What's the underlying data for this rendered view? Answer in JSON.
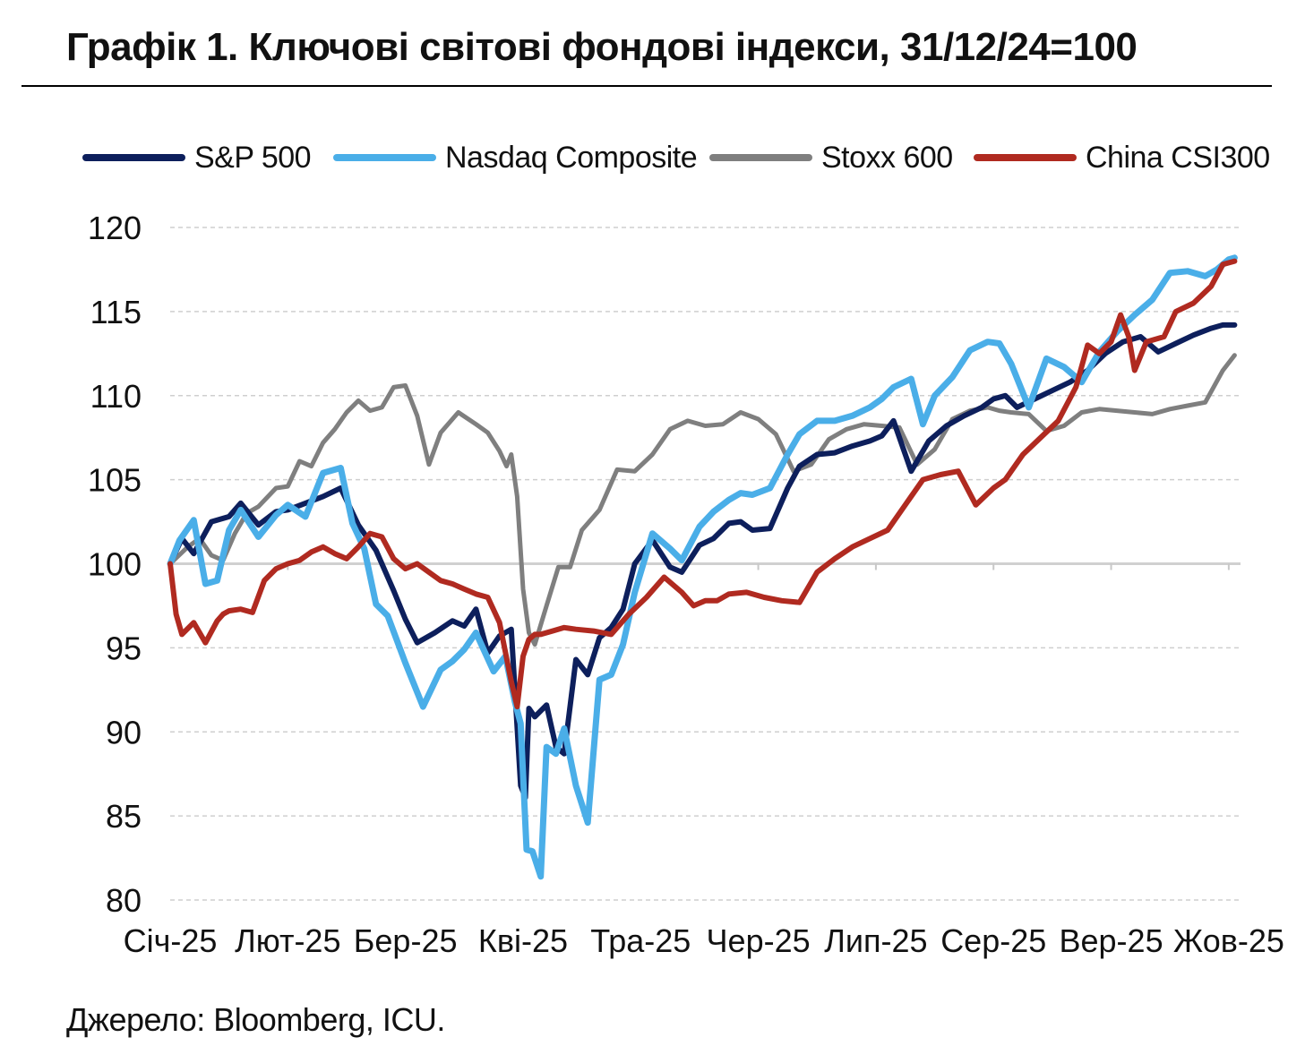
{
  "title": "Графік 1. Ключові світові фондові індекси, 31/12/24=100",
  "source": "Джерело: Bloomberg, ICU.",
  "chart_data": {
    "type": "line",
    "title": "Графік 1. Ключові світові фондові індекси, 31/12/24=100",
    "xlabel": "",
    "ylabel": "",
    "ylim": [
      80,
      120
    ],
    "yticks": [
      80,
      85,
      90,
      95,
      100,
      105,
      110,
      115,
      120
    ],
    "grid": "horizontal dashed",
    "legend_position": "top",
    "x_tick_labels": [
      "Січ-25",
      "Лют-25",
      "Бер-25",
      "Кві-25",
      "Тра-25",
      "Чер-25",
      "Лип-25",
      "Сер-25",
      "Вер-25",
      "Жов-25"
    ],
    "x_tick_positions": [
      0,
      1,
      2,
      3,
      4,
      5,
      6,
      7,
      8,
      9
    ],
    "x_range": [
      0,
      9.1
    ],
    "series": [
      {
        "name": "S&P 500",
        "color": "#0d1f5c",
        "x": [
          0,
          0.1,
          0.2,
          0.35,
          0.5,
          0.6,
          0.75,
          0.9,
          1.0,
          1.15,
          1.3,
          1.45,
          1.6,
          1.75,
          1.9,
          2.0,
          2.1,
          2.25,
          2.4,
          2.5,
          2.6,
          2.7,
          2.8,
          2.9,
          2.98,
          3.02,
          3.05,
          3.1,
          3.2,
          3.28,
          3.35,
          3.45,
          3.55,
          3.65,
          3.75,
          3.85,
          3.95,
          4.1,
          4.25,
          4.35,
          4.5,
          4.62,
          4.75,
          4.85,
          4.95,
          5.1,
          5.25,
          5.35,
          5.5,
          5.65,
          5.8,
          5.95,
          6.05,
          6.15,
          6.3,
          6.45,
          6.6,
          6.75,
          6.9,
          7.0,
          7.1,
          7.2,
          7.35,
          7.5,
          7.65,
          7.8,
          7.95,
          8.1,
          8.25,
          8.4,
          8.55,
          8.7,
          8.85,
          8.95,
          9.05
        ],
        "values": [
          100,
          101.5,
          100.6,
          102.5,
          102.8,
          103.6,
          102.3,
          103.1,
          103.2,
          103.6,
          104.0,
          104.5,
          102.3,
          100.8,
          98.4,
          96.7,
          95.3,
          95.9,
          96.6,
          96.3,
          97.3,
          94.7,
          95.7,
          96.1,
          86.8,
          86.1,
          91.4,
          90.9,
          91.6,
          89.1,
          88.7,
          94.3,
          93.4,
          95.6,
          96.2,
          97.3,
          100.0,
          101.4,
          99.8,
          99.5,
          101.1,
          101.5,
          102.4,
          102.5,
          102.0,
          102.1,
          104.5,
          105.8,
          106.5,
          106.6,
          107.0,
          107.3,
          107.6,
          108.5,
          105.5,
          107.3,
          108.2,
          108.8,
          109.3,
          109.8,
          110.0,
          109.3,
          109.8,
          110.3,
          110.8,
          111.5,
          112.5,
          113.2,
          113.5,
          112.6,
          113.1,
          113.6,
          114.0,
          114.2,
          114.2
        ]
      },
      {
        "name": "Nasdaq Composite",
        "color": "#4aaee8",
        "x": [
          0,
          0.08,
          0.2,
          0.3,
          0.4,
          0.5,
          0.6,
          0.75,
          0.9,
          1.0,
          1.15,
          1.3,
          1.45,
          1.55,
          1.65,
          1.75,
          1.85,
          2.0,
          2.15,
          2.3,
          2.4,
          2.5,
          2.6,
          2.75,
          2.85,
          2.93,
          2.98,
          3.03,
          3.08,
          3.15,
          3.2,
          3.28,
          3.35,
          3.45,
          3.55,
          3.65,
          3.75,
          3.85,
          3.95,
          4.1,
          4.25,
          4.35,
          4.5,
          4.62,
          4.75,
          4.85,
          4.95,
          5.1,
          5.25,
          5.35,
          5.5,
          5.65,
          5.8,
          5.95,
          6.05,
          6.15,
          6.3,
          6.4,
          6.5,
          6.65,
          6.8,
          6.95,
          7.05,
          7.15,
          7.3,
          7.45,
          7.6,
          7.75,
          7.9,
          8.05,
          8.2,
          8.35,
          8.5,
          8.65,
          8.8,
          8.9,
          9.0,
          9.05
        ],
        "values": [
          100,
          101.4,
          102.6,
          98.8,
          99.0,
          102.0,
          103.2,
          101.6,
          102.9,
          103.5,
          102.8,
          105.4,
          105.7,
          102.4,
          100.9,
          97.6,
          96.9,
          94.1,
          91.5,
          93.7,
          94.2,
          94.9,
          95.9,
          93.6,
          94.5,
          91.8,
          90.5,
          83.0,
          82.9,
          81.4,
          89.1,
          88.7,
          90.2,
          86.8,
          84.6,
          93.1,
          93.4,
          95.2,
          98.3,
          101.8,
          100.9,
          100.2,
          102.2,
          103.1,
          103.8,
          104.2,
          104.1,
          104.5,
          106.5,
          107.7,
          108.5,
          108.5,
          108.8,
          109.3,
          109.8,
          110.5,
          111.0,
          108.3,
          110.0,
          111.1,
          112.7,
          113.2,
          113.1,
          111.9,
          109.3,
          112.2,
          111.7,
          110.8,
          112.6,
          113.8,
          114.8,
          115.7,
          117.3,
          117.4,
          117.1,
          117.5,
          118.1,
          118.2
        ]
      },
      {
        "name": "Stoxx 600",
        "color": "#7f7f7f",
        "x": [
          0,
          0.15,
          0.25,
          0.35,
          0.45,
          0.55,
          0.65,
          0.75,
          0.9,
          1.0,
          1.1,
          1.2,
          1.3,
          1.4,
          1.5,
          1.6,
          1.7,
          1.8,
          1.9,
          2.0,
          2.1,
          2.2,
          2.3,
          2.45,
          2.6,
          2.7,
          2.8,
          2.86,
          2.9,
          2.95,
          3.0,
          3.05,
          3.1,
          3.2,
          3.3,
          3.4,
          3.5,
          3.65,
          3.8,
          3.95,
          4.1,
          4.25,
          4.4,
          4.55,
          4.7,
          4.85,
          5.0,
          5.15,
          5.3,
          5.45,
          5.6,
          5.75,
          5.9,
          6.05,
          6.2,
          6.35,
          6.5,
          6.65,
          6.8,
          6.95,
          7.05,
          7.15,
          7.3,
          7.45,
          7.6,
          7.75,
          7.9,
          8.05,
          8.2,
          8.35,
          8.5,
          8.65,
          8.8,
          8.95,
          9.05
        ],
        "values": [
          100,
          101.0,
          101.5,
          100.5,
          100.2,
          101.8,
          103.0,
          103.4,
          104.5,
          104.6,
          106.1,
          105.8,
          107.2,
          108.0,
          109.0,
          109.7,
          109.1,
          109.3,
          110.5,
          110.6,
          108.8,
          105.9,
          107.8,
          109.0,
          108.3,
          107.8,
          106.7,
          105.8,
          106.5,
          104.0,
          98.5,
          95.9,
          95.2,
          97.5,
          99.8,
          99.8,
          102.0,
          103.2,
          105.6,
          105.5,
          106.5,
          108.0,
          108.5,
          108.2,
          108.3,
          109.0,
          108.6,
          107.7,
          105.5,
          105.9,
          107.4,
          108.0,
          108.3,
          108.2,
          108.1,
          105.9,
          106.8,
          108.6,
          109.1,
          109.3,
          109.1,
          109.0,
          108.9,
          107.9,
          108.2,
          109.0,
          109.2,
          109.1,
          109.0,
          108.9,
          109.2,
          109.4,
          109.6,
          111.5,
          112.4
        ]
      },
      {
        "name": "China CSI300",
        "color": "#b02a20",
        "x": [
          0,
          0.05,
          0.1,
          0.2,
          0.3,
          0.4,
          0.45,
          0.5,
          0.6,
          0.7,
          0.8,
          0.9,
          1.0,
          1.1,
          1.2,
          1.3,
          1.4,
          1.5,
          1.6,
          1.7,
          1.8,
          1.9,
          2.0,
          2.1,
          2.2,
          2.3,
          2.4,
          2.5,
          2.6,
          2.7,
          2.8,
          2.9,
          2.95,
          3.0,
          3.05,
          3.1,
          3.15,
          3.25,
          3.35,
          3.45,
          3.6,
          3.75,
          3.9,
          4.05,
          4.2,
          4.35,
          4.45,
          4.55,
          4.65,
          4.75,
          4.9,
          5.05,
          5.2,
          5.35,
          5.5,
          5.65,
          5.8,
          5.95,
          6.1,
          6.25,
          6.4,
          6.55,
          6.7,
          6.85,
          7.0,
          7.1,
          7.25,
          7.4,
          7.55,
          7.7,
          7.8,
          7.9,
          8.0,
          8.08,
          8.15,
          8.2,
          8.3,
          8.45,
          8.55,
          8.7,
          8.85,
          8.95,
          9.05
        ],
        "values": [
          100,
          97.0,
          95.8,
          96.5,
          95.3,
          96.6,
          97.0,
          97.2,
          97.3,
          97.1,
          99.0,
          99.7,
          100.0,
          100.2,
          100.7,
          101.0,
          100.6,
          100.3,
          101.0,
          101.8,
          101.6,
          100.3,
          99.7,
          100.0,
          99.5,
          99.0,
          98.8,
          98.5,
          98.2,
          98.0,
          96.5,
          93.0,
          91.5,
          94.5,
          95.5,
          95.8,
          95.8,
          96.0,
          96.2,
          96.1,
          96.0,
          95.8,
          97.0,
          98.0,
          99.2,
          98.3,
          97.5,
          97.8,
          97.8,
          98.2,
          98.3,
          98.0,
          97.8,
          97.7,
          99.5,
          100.3,
          101.0,
          101.5,
          102.0,
          103.5,
          105.0,
          105.3,
          105.5,
          103.5,
          104.5,
          105.0,
          106.5,
          107.5,
          108.5,
          110.5,
          113.0,
          112.5,
          113.2,
          114.8,
          113.5,
          111.5,
          113.2,
          113.5,
          115.0,
          115.5,
          116.5,
          117.8,
          118.0
        ]
      }
    ]
  }
}
